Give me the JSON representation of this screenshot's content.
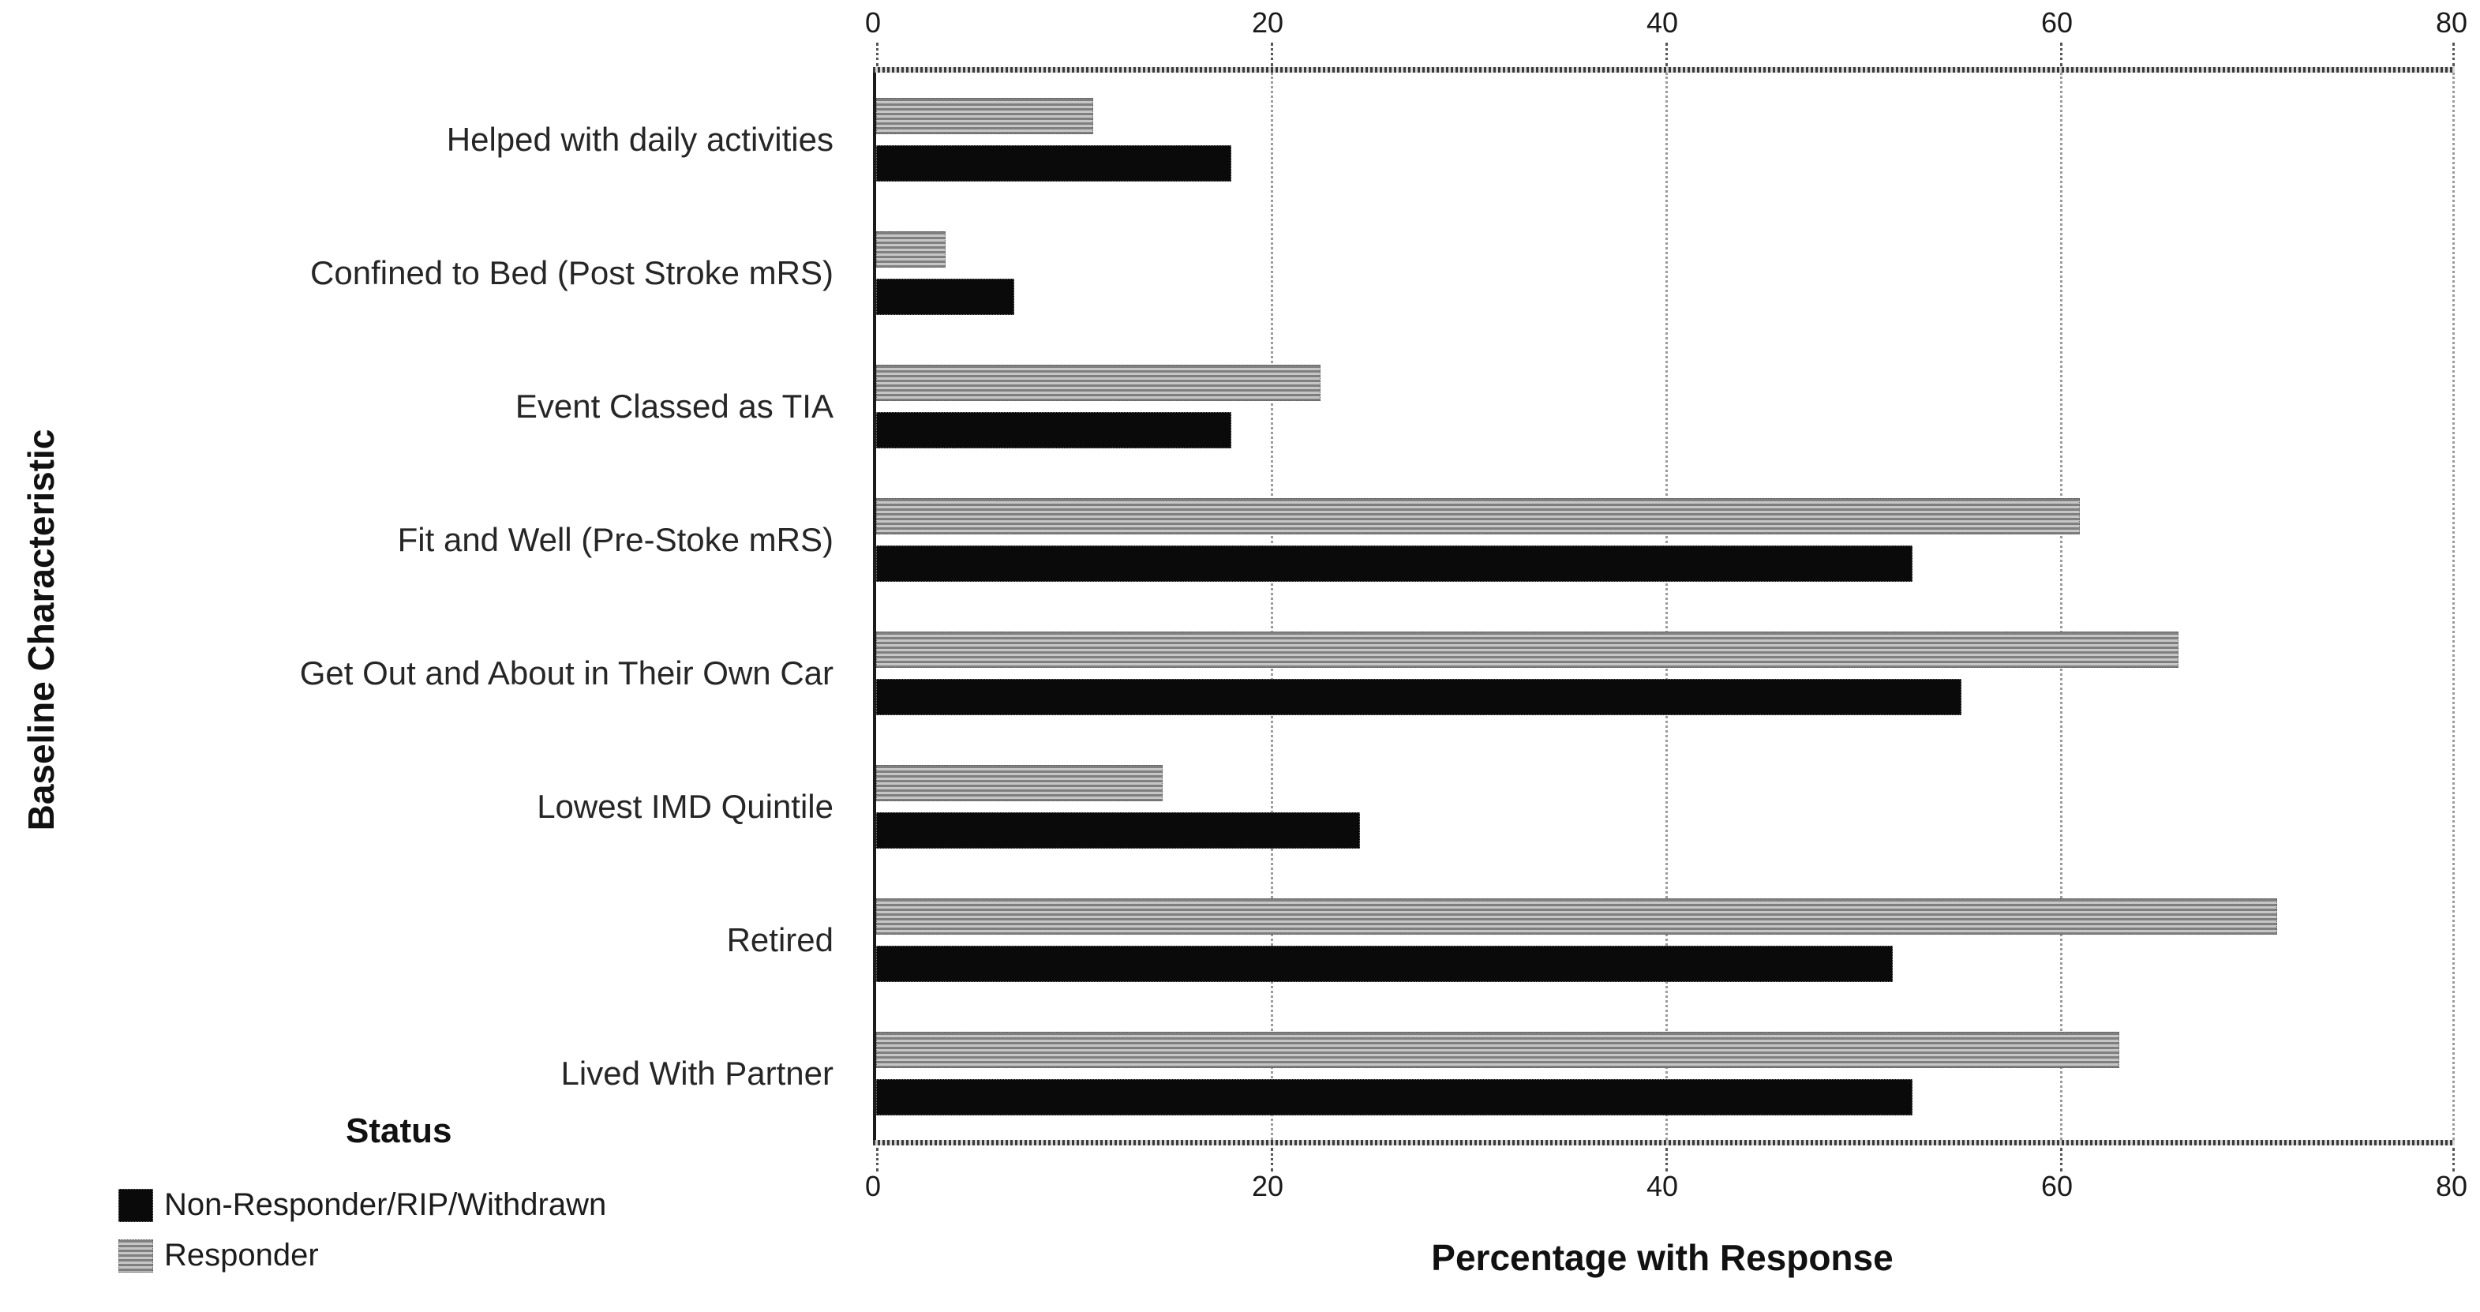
{
  "chart_data": {
    "type": "bar",
    "orientation": "horizontal",
    "xlabel": "Percentage with Response",
    "ylabel": "Baseline Characteristic",
    "xlim": [
      0,
      80
    ],
    "x_ticks": [
      "0",
      "20",
      "40",
      "60",
      "80"
    ],
    "grid": "vertical dotted gridlines at 20, 40, 60, 80; tick labels on top and bottom axes",
    "categories": [
      "Helped with daily activities",
      "Confined to Bed (Post Stroke mRS)",
      "Event Classed as TIA",
      "Fit and Well (Pre-Stoke mRS)",
      "Get Out and About in Their Own Car",
      "Lowest IMD Quintile",
      "Retired",
      "Lived With Partner"
    ],
    "series": [
      {
        "name": "Responder",
        "color": "#9a9a9a",
        "pattern": "gray horizontal-stripe halftone",
        "values": [
          11,
          3.5,
          22.5,
          61,
          66,
          14.5,
          71,
          63
        ]
      },
      {
        "name": "Non-Responder/RIP/Withdrawn",
        "color": "#0a0a0a",
        "pattern": "solid black",
        "values": [
          18,
          7,
          18,
          52.5,
          55,
          24.5,
          51.5,
          52.5
        ]
      }
    ],
    "bar_order_note": "within each category the Responder (gray) bar is drawn above the Non-Responder (black) bar",
    "legend": {
      "title": "Status",
      "position": "bottom-left",
      "entries": [
        {
          "label": "Non-Responder/RIP/Withdrawn",
          "swatch": "black-solid"
        },
        {
          "label": "Responder",
          "swatch": "gray-striped"
        }
      ]
    }
  }
}
